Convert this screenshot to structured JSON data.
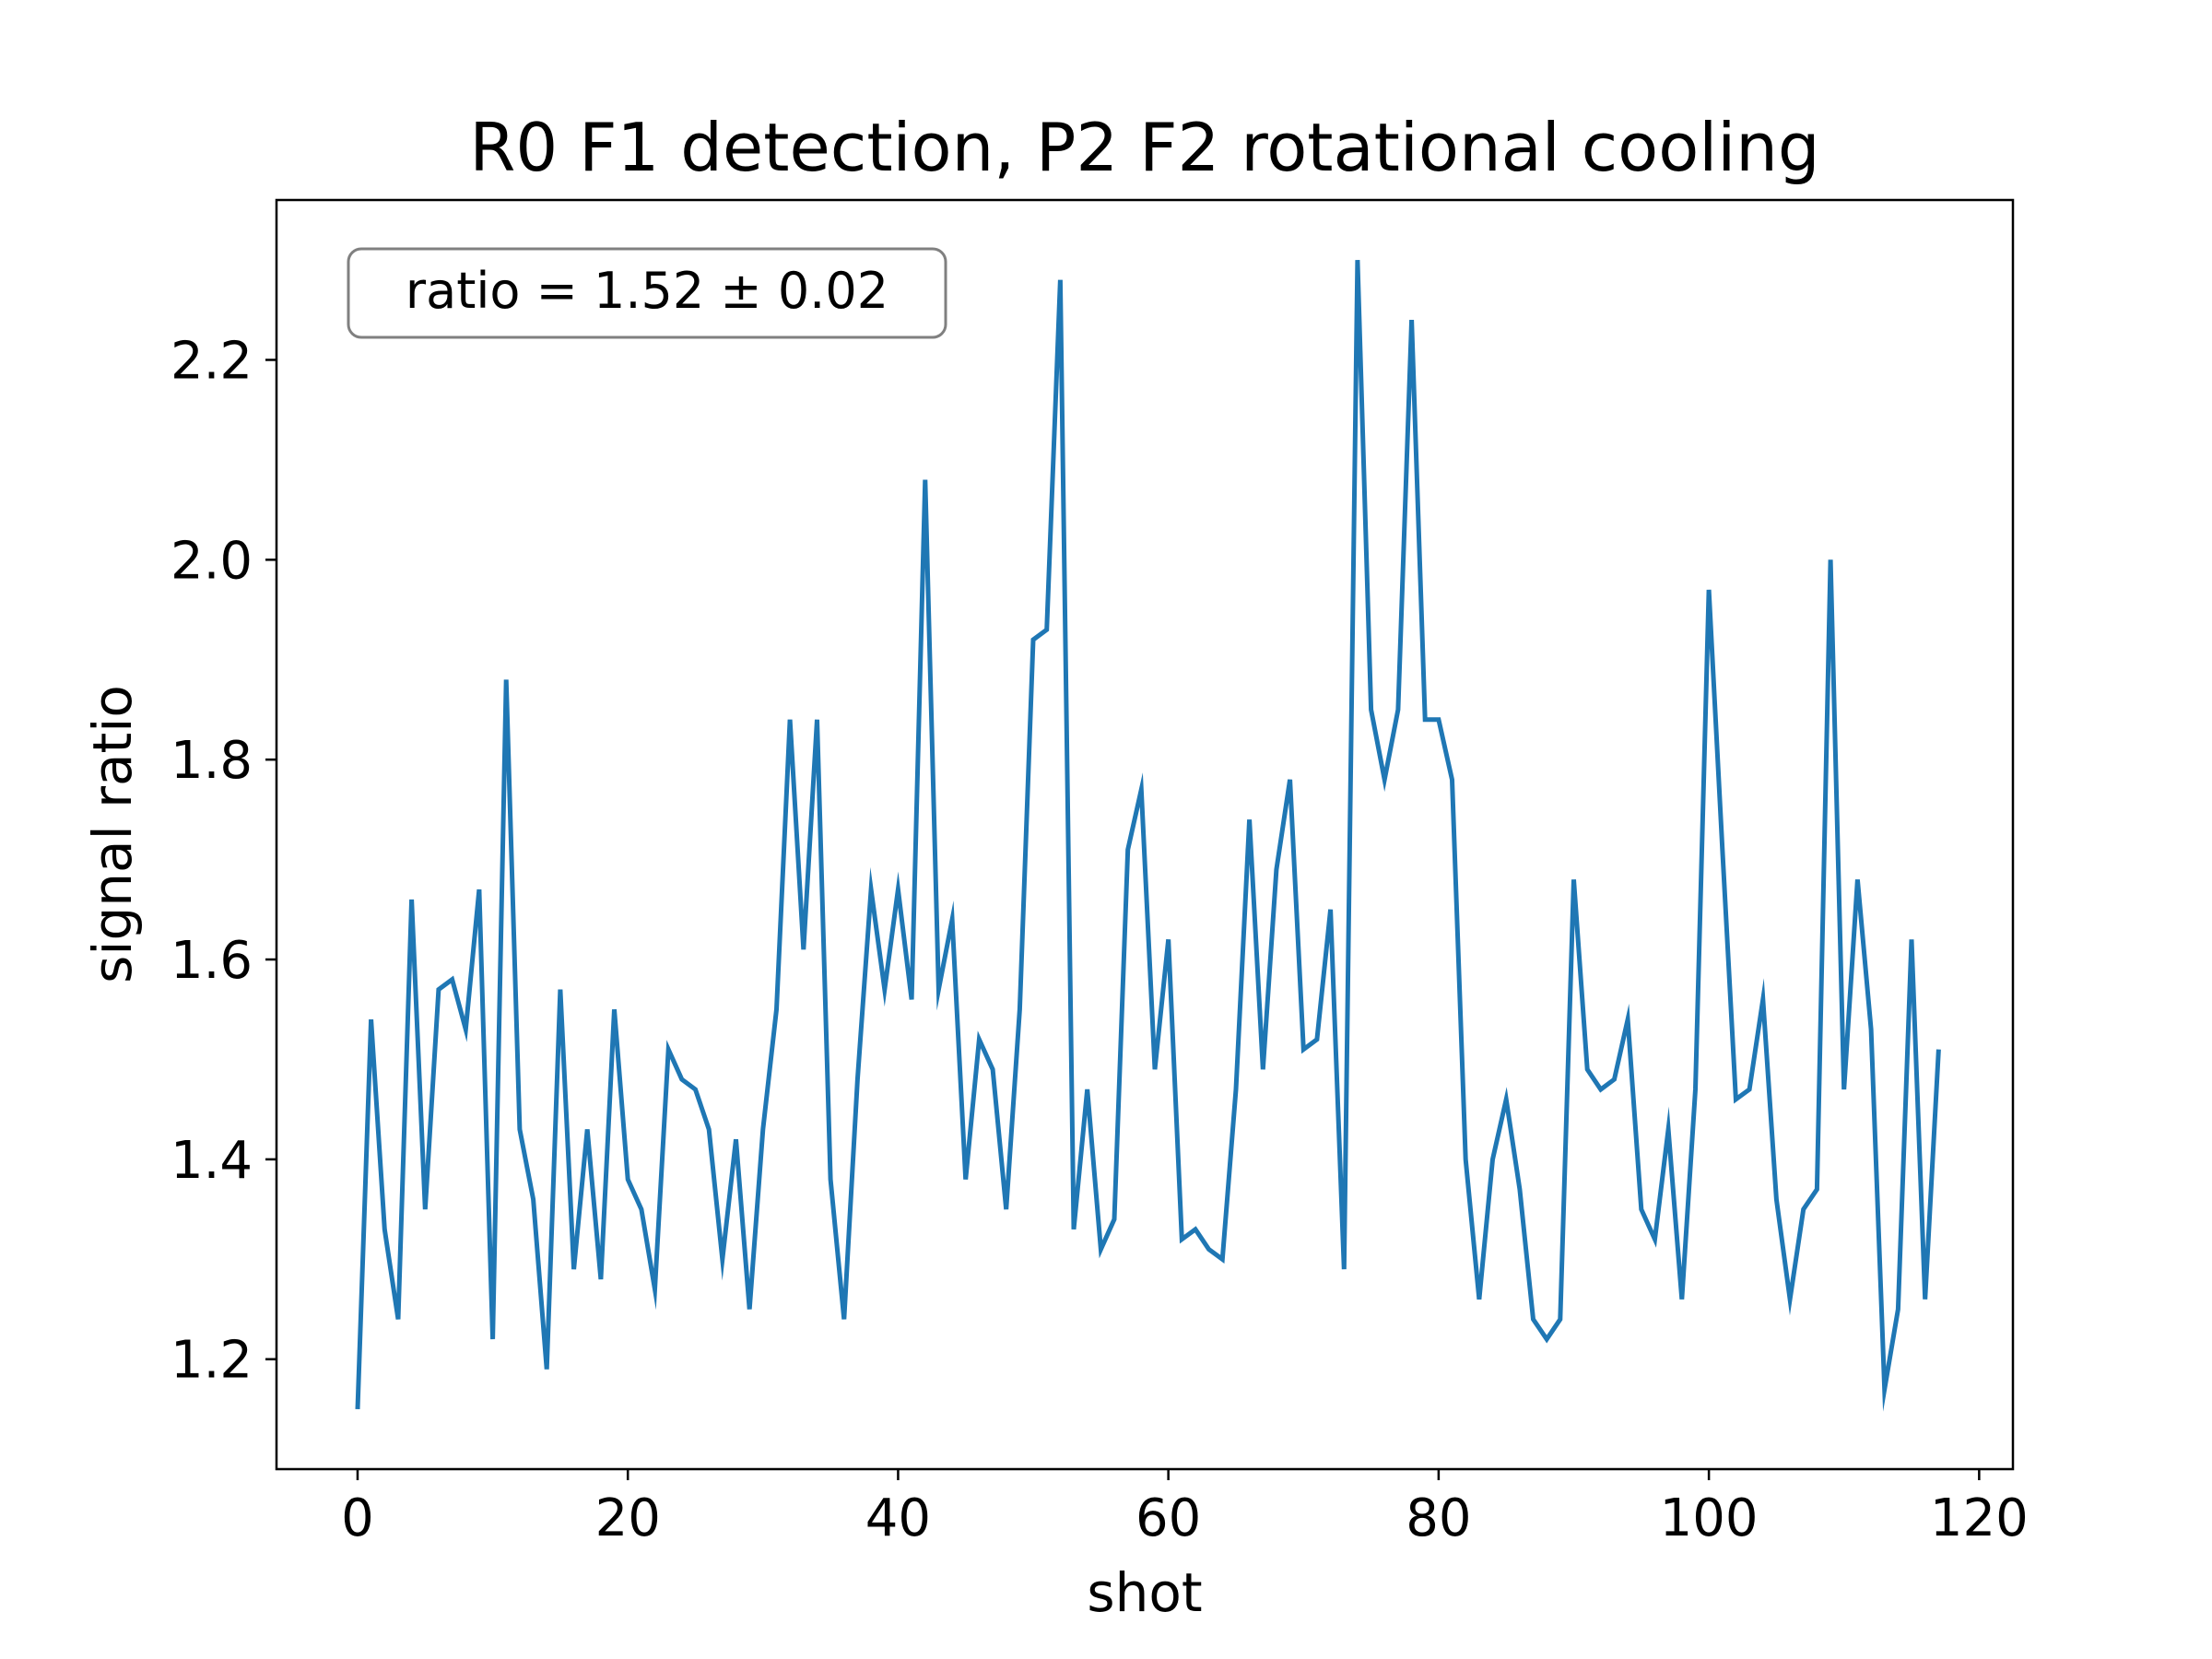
{
  "chart_data": {
    "type": "line",
    "title": "R0 F1 detection, P2 F2 rotational cooling",
    "xlabel": "shot",
    "ylabel": "signal ratio",
    "xlim": [
      -6,
      122.5
    ],
    "ylim": [
      1.09,
      2.36
    ],
    "xticks": [
      0,
      20,
      40,
      60,
      80,
      100,
      120
    ],
    "yticks": [
      1.2,
      1.4,
      1.6,
      1.8,
      2.0,
      2.2
    ],
    "xtick_labels": [
      "0",
      "20",
      "40",
      "60",
      "80",
      "100",
      "120"
    ],
    "ytick_labels": [
      "1.2",
      "1.4",
      "1.6",
      "1.8",
      "2.0",
      "2.2"
    ],
    "grid": false,
    "annotation": "ratio = 1.52 ± 0.02",
    "annotation_position": "top-left",
    "series": [
      {
        "color": "#1f77b4",
        "x": [
          0,
          1,
          2,
          3,
          4,
          5,
          6,
          7,
          8,
          9,
          10,
          11,
          12,
          13,
          14,
          15,
          16,
          17,
          18,
          19,
          20,
          21,
          22,
          23,
          24,
          25,
          26,
          27,
          28,
          29,
          30,
          31,
          32,
          33,
          34,
          35,
          36,
          37,
          38,
          39,
          40,
          41,
          42,
          43,
          44,
          45,
          46,
          47,
          48,
          49,
          50,
          51,
          52,
          53,
          54,
          55,
          56,
          57,
          58,
          59,
          60,
          61,
          62,
          63,
          64,
          65,
          66,
          67,
          68,
          69,
          70,
          71,
          72,
          73,
          74,
          75,
          76,
          77,
          78,
          79,
          80,
          81,
          82,
          83,
          84,
          85,
          86,
          87,
          88,
          89,
          90,
          91,
          92,
          93,
          94,
          95,
          96,
          97,
          98,
          99,
          100,
          101,
          102,
          103,
          104,
          105,
          106,
          107,
          108,
          109,
          110,
          111,
          112,
          113,
          114,
          115,
          116,
          117
        ],
        "values": [
          1.15,
          1.54,
          1.33,
          1.24,
          1.66,
          1.35,
          1.57,
          1.58,
          1.53,
          1.67,
          1.22,
          1.88,
          1.43,
          1.36,
          1.19,
          1.57,
          1.29,
          1.43,
          1.28,
          1.55,
          1.38,
          1.35,
          1.27,
          1.51,
          1.48,
          1.47,
          1.43,
          1.3,
          1.42,
          1.25,
          1.43,
          1.55,
          1.84,
          1.61,
          1.84,
          1.38,
          1.24,
          1.48,
          1.67,
          1.57,
          1.67,
          1.56,
          2.08,
          1.57,
          1.64,
          1.38,
          1.52,
          1.49,
          1.35,
          1.55,
          1.92,
          1.93,
          2.28,
          1.33,
          1.47,
          1.31,
          1.34,
          1.71,
          1.77,
          1.49,
          1.62,
          1.32,
          1.33,
          1.31,
          1.3,
          1.47,
          1.74,
          1.49,
          1.69,
          1.78,
          1.51,
          1.52,
          1.65,
          1.29,
          2.3,
          1.85,
          1.78,
          1.85,
          2.24,
          1.84,
          1.84,
          1.78,
          1.4,
          1.26,
          1.4,
          1.46,
          1.37,
          1.24,
          1.22,
          1.24,
          1.68,
          1.49,
          1.47,
          1.48,
          1.54,
          1.35,
          1.32,
          1.43,
          1.26,
          1.47,
          1.97,
          1.71,
          1.46,
          1.47,
          1.56,
          1.36,
          1.26,
          1.35,
          1.37,
          2.0,
          1.47,
          1.68,
          1.53,
          1.17,
          1.25,
          1.62,
          1.26,
          1.51
        ]
      }
    ]
  }
}
